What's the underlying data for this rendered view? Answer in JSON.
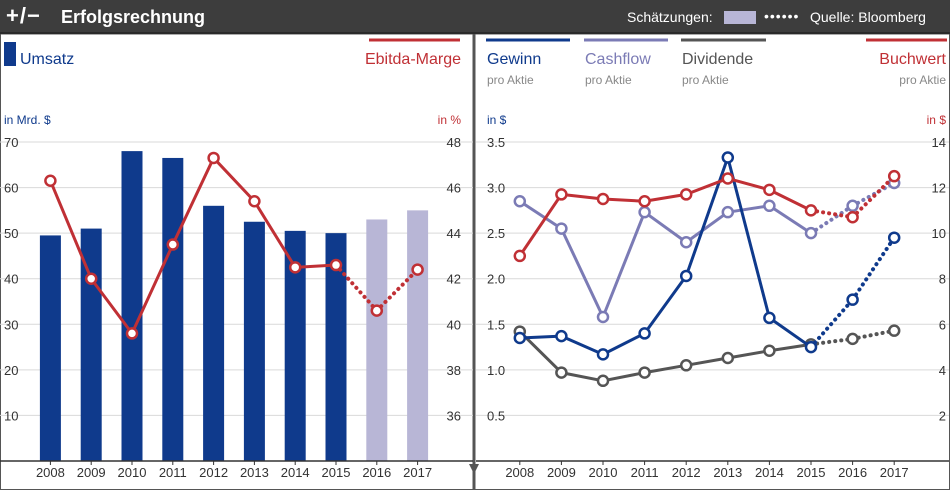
{
  "header": {
    "icon": "+/−",
    "title": "Erfolgsrechnung",
    "estimates_label": "Schätzungen:",
    "estimates_color": "#b8b6d6",
    "source": "Quelle: Bloomberg"
  },
  "chart_data": [
    {
      "type": "bar+line",
      "legend_left": "Umsatz",
      "legend_right": "Ebitda-Marge",
      "left_unit": "in Mrd. $",
      "right_unit": "in %",
      "categories": [
        "2008",
        "2009",
        "2010",
        "2011",
        "2012",
        "2013",
        "2014",
        "2015",
        "2016",
        "2017"
      ],
      "bars": {
        "name": "Umsatz",
        "color": "#0f3a8c",
        "estimate_color": "#b8b6d6",
        "values": [
          49.5,
          51,
          68,
          66.5,
          56,
          52.5,
          50.5,
          50,
          53,
          55
        ],
        "estimate_from_index": 8
      },
      "line": {
        "name": "Ebitda-Marge",
        "color": "#c03035",
        "values": [
          46.3,
          42,
          39.6,
          43.5,
          47.3,
          45.4,
          42.5,
          42.6,
          40.6,
          42.4
        ],
        "estimate_from_index": 8
      },
      "y_left": {
        "min": 0,
        "max": 70,
        "ticks": [
          10,
          20,
          30,
          40,
          50,
          60,
          70
        ]
      },
      "y_right": {
        "min": 34,
        "max": 48,
        "ticks": [
          36,
          38,
          40,
          42,
          44,
          46,
          48
        ]
      }
    },
    {
      "type": "line",
      "left_unit": "in $",
      "right_unit": "in $",
      "categories": [
        "2008",
        "2009",
        "2010",
        "2011",
        "2012",
        "2013",
        "2014",
        "2015",
        "2016",
        "2017"
      ],
      "series": [
        {
          "name": "Gewinn",
          "sub": "pro Aktie",
          "color": "#0f3a8c",
          "axis": "left",
          "values": [
            1.35,
            1.37,
            1.17,
            1.4,
            2.03,
            3.33,
            1.57,
            1.25,
            1.77,
            2.45
          ],
          "estimate_from_index": 8
        },
        {
          "name": "Cashflow",
          "sub": "pro Aktie",
          "color": "#7b7bb5",
          "axis": "left",
          "values": [
            2.85,
            2.55,
            1.58,
            2.73,
            2.4,
            2.73,
            2.8,
            2.5,
            2.8,
            3.05
          ],
          "estimate_from_index": 8
        },
        {
          "name": "Dividende",
          "sub": "pro Aktie",
          "color": "#555555",
          "axis": "left",
          "values": [
            1.42,
            0.97,
            0.88,
            0.97,
            1.05,
            1.13,
            1.21,
            1.28,
            1.34,
            1.43
          ],
          "estimate_from_index": 8
        },
        {
          "name": "Buchwert",
          "sub": "pro Aktie",
          "color": "#c03035",
          "axis": "right",
          "values": [
            9.0,
            11.7,
            11.5,
            11.4,
            11.7,
            12.4,
            11.9,
            11.0,
            10.7,
            12.5
          ],
          "estimate_from_index": 8
        }
      ],
      "y_left": {
        "min": 0,
        "max": 3.5,
        "ticks": [
          0.5,
          1.0,
          1.5,
          2.0,
          2.5,
          3.0,
          3.5
        ],
        "tick_labels": [
          "0.5",
          "1.0",
          "1.5",
          "2.0",
          "2.5",
          "3.0",
          "3.5"
        ]
      },
      "y_right": {
        "min": 0,
        "max": 14,
        "ticks": [
          2,
          4,
          6,
          8,
          10,
          12,
          14
        ]
      }
    }
  ]
}
